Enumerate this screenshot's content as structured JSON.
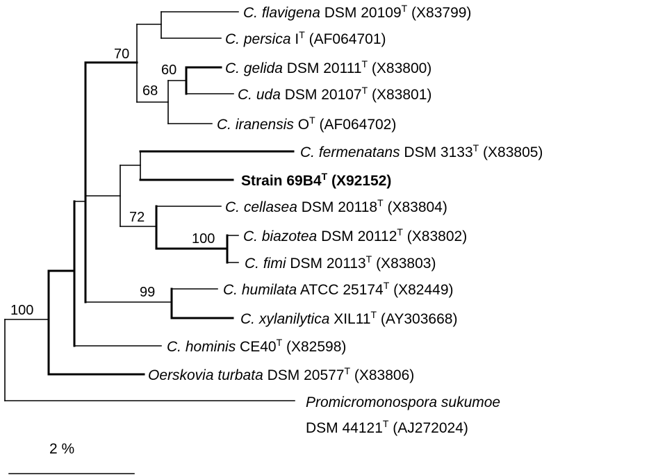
{
  "taxa": [
    {
      "genus": "C. flavigena",
      "strain": " DSM 20109",
      "type_mark": "T",
      "accession": " (X83799)"
    },
    {
      "genus": "C. persica",
      "strain": " I",
      "type_mark": "T",
      "accession": " (AF064701)"
    },
    {
      "genus": "C. gelida",
      "strain": " DSM 20111",
      "type_mark": "T",
      "accession": " (X83800)"
    },
    {
      "genus": "C. uda",
      "strain": " DSM 20107",
      "type_mark": "T",
      "accession": " (X83801)"
    },
    {
      "genus": "C. iranensis",
      "strain": " O",
      "type_mark": "T",
      "accession": " (AF064702)"
    },
    {
      "genus": "C. fermenatans",
      "strain": " DSM 3133",
      "type_mark": "T",
      "accession": " (X83805)"
    },
    {
      "genus": "",
      "strain": "Strain 69B4",
      "type_mark": "T",
      "accession": " (X92152)"
    },
    {
      "genus": "C. cellasea",
      "strain": " DSM 20118",
      "type_mark": "T",
      "accession": " (X83804)"
    },
    {
      "genus": "C. biazotea",
      "strain": " DSM 20112",
      "type_mark": "T",
      "accession": " (X83802)"
    },
    {
      "genus": "C. fimi",
      "strain": " DSM 20113",
      "type_mark": "T",
      "accession": " (X83803)"
    },
    {
      "genus": "C. humilata",
      "strain": " ATCC 25174",
      "type_mark": "T",
      "accession": " (X82449)"
    },
    {
      "genus": "C. xylanilytica",
      "strain": " XIL11",
      "type_mark": "T",
      "accession": " (AY303668)"
    },
    {
      "genus": "C. hominis",
      "strain": " CE40",
      "type_mark": "T",
      "accession": " (X82598)"
    },
    {
      "genus": "Oerskovia turbata",
      "strain": " DSM 20577",
      "type_mark": "T",
      "accession": " (X83806)"
    },
    {
      "genus": "Promicromonospora sukumoe",
      "strain": "DSM 44121",
      "type_mark": "T",
      "accession": " (AJ272024)"
    }
  ],
  "bootstrap": [
    "70",
    "60",
    "68",
    "72",
    "100",
    "99",
    "100"
  ],
  "scale_bar": {
    "label": "2 %"
  }
}
